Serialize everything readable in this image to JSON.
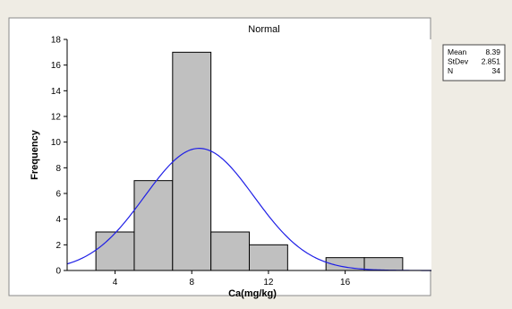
{
  "chart_data": {
    "type": "bar",
    "title": "Normal",
    "xlabel": "Ca(mg/kg)",
    "ylabel": "Frequency",
    "bins": [
      {
        "start": 3,
        "end": 5,
        "count": 3
      },
      {
        "start": 5,
        "end": 7,
        "count": 7
      },
      {
        "start": 7,
        "end": 9,
        "count": 17
      },
      {
        "start": 9,
        "end": 11,
        "count": 3
      },
      {
        "start": 11,
        "end": 13,
        "count": 2
      },
      {
        "start": 13,
        "end": 15,
        "count": 0
      },
      {
        "start": 15,
        "end": 17,
        "count": 1
      },
      {
        "start": 17,
        "end": 19,
        "count": 1
      }
    ],
    "xlim": [
      1.5,
      20.5
    ],
    "ylim": [
      0,
      18
    ],
    "xticks": [
      4,
      8,
      12,
      16
    ],
    "yticks": [
      0,
      2,
      4,
      6,
      8,
      10,
      12,
      14,
      16,
      18
    ],
    "fit": {
      "type": "normal",
      "mean": 8.39,
      "stdev": 2.851,
      "n": 34,
      "bin_width": 2
    },
    "legend": {
      "placement": "top-right",
      "rows": [
        {
          "label": "Mean",
          "value": "8.39"
        },
        {
          "label": "StDev",
          "value": "2.851"
        },
        {
          "label": "N",
          "value": "34"
        }
      ]
    },
    "colors": {
      "bar_fill": "#c0c0c0",
      "bar_stroke": "#000000",
      "curve": "#1f1fe6",
      "outer_background": "#efece4",
      "plot_background": "#ffffff"
    }
  }
}
